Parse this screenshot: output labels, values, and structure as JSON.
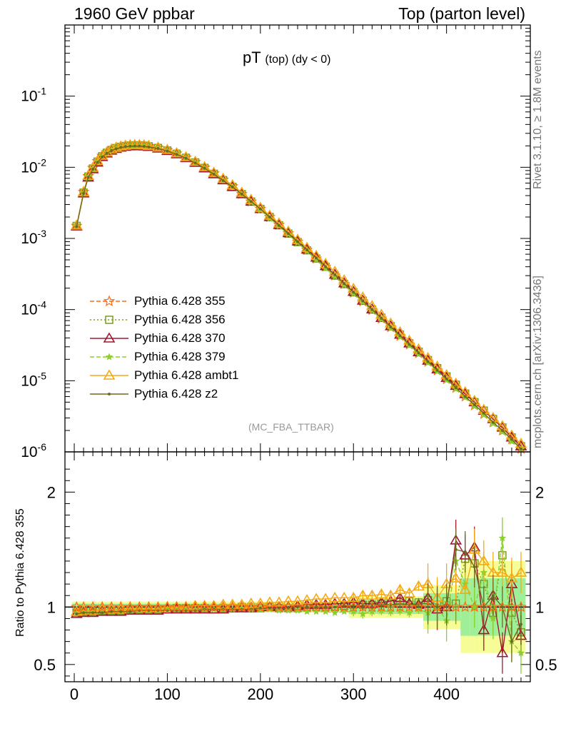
{
  "header": {
    "left": "1960 GeV ppbar",
    "right": "Top (parton level)",
    "title_main": "pT",
    "title_sub": "(top) (dy < 0)",
    "watermark": "(MC_FBA_TTBAR)",
    "side_rivet": "Rivet 3.1.10, ≥ 1.8M events",
    "side_mcplots": "mcplots.cern.ch [arXiv:1306.3436]"
  },
  "chart_data": [
    {
      "type": "line",
      "panel": "main",
      "yscale": "log",
      "xlim": [
        -10,
        490
      ],
      "ylim": [
        1e-06,
        1
      ],
      "ytick_labels": [
        "10^-1",
        "10^-2",
        "10^-3",
        "10^-4",
        "10^-5",
        "10^-6"
      ],
      "x": [
        2.5,
        10,
        15,
        20,
        25,
        30,
        35,
        40,
        45,
        50,
        55,
        60,
        65,
        70,
        75,
        80,
        90,
        100,
        110,
        120,
        130,
        140,
        150,
        160,
        170,
        180,
        190,
        200,
        210,
        220,
        230,
        240,
        250,
        260,
        270,
        280,
        290,
        300,
        310,
        320,
        330,
        340,
        350,
        360,
        370,
        380,
        390,
        400,
        410,
        420,
        430,
        440,
        450,
        460,
        470,
        480
      ],
      "series": [
        {
          "name": "Pythia 6.428 355",
          "color": "#ff6a13",
          "marker": "star",
          "dash": "6,3",
          "values": [
            0.0015,
            0.0045,
            0.0075,
            0.0098,
            0.0122,
            0.0145,
            0.0162,
            0.0178,
            0.0188,
            0.0196,
            0.0201,
            0.0204,
            0.0205,
            0.0205,
            0.0203,
            0.0199,
            0.0189,
            0.0174,
            0.0156,
            0.0137,
            0.0118,
            0.0099,
            0.0082,
            0.0067,
            0.0054,
            0.0042,
            0.0033,
            0.0026,
            0.002,
            0.00155,
            0.00118,
            0.0009,
            0.00069,
            0.00052,
            0.0004,
            0.0003,
            0.000228,
            0.000172,
            0.00013,
            9.85e-05,
            7.45e-05,
            5.63e-05,
            4.25e-05,
            3.22e-05,
            2.43e-05,
            1.84e-05,
            1.39e-05,
            1.05e-05,
            7.9e-06,
            6e-06,
            4.5e-06,
            3.4e-06,
            2.6e-06,
            2e-06,
            1.5e-06,
            1.1e-06
          ]
        },
        {
          "name": "Pythia 6.428 356",
          "color": "#7c9e1f",
          "marker": "square",
          "dash": "2,3",
          "values": [
            0.0015,
            0.0044,
            0.0074,
            0.0096,
            0.012,
            0.0143,
            0.016,
            0.0175,
            0.0186,
            0.0194,
            0.0199,
            0.0202,
            0.0203,
            0.0203,
            0.0201,
            0.0197,
            0.0187,
            0.0172,
            0.0155,
            0.0136,
            0.0117,
            0.0098,
            0.0081,
            0.0066,
            0.0053,
            0.0042,
            0.0033,
            0.0026,
            0.002,
            0.00153,
            0.00117,
            0.00089,
            0.00068,
            0.00052,
            0.0004,
            0.0003,
            0.000228,
            0.000175,
            0.000133,
            0.0001,
            7.7e-05,
            5.85e-05,
            4.45e-05,
            3.36e-05,
            2.56e-05,
            1.95e-05,
            1.5e-05,
            1.15e-05,
            8.8e-06,
            6.6e-06,
            5e-06,
            3.8e-06,
            2.9e-06,
            2.2e-06,
            1.6e-06,
            1.2e-06
          ]
        },
        {
          "name": "Pythia 6.428 370",
          "color": "#a01830",
          "marker": "triangle",
          "dash": "",
          "values": [
            0.00148,
            0.0043,
            0.0072,
            0.0094,
            0.0117,
            0.014,
            0.0157,
            0.0172,
            0.0182,
            0.019,
            0.0195,
            0.0198,
            0.0199,
            0.0199,
            0.0197,
            0.0194,
            0.0184,
            0.017,
            0.0153,
            0.0135,
            0.0116,
            0.0097,
            0.008,
            0.0066,
            0.0053,
            0.0042,
            0.0033,
            0.0026,
            0.002,
            0.00155,
            0.00119,
            0.00091,
            0.0007,
            0.00054,
            0.00041,
            0.00031,
            0.000235,
            0.000178,
            0.000134,
            0.000101,
            7.65e-05,
            5.85e-05,
            4.45e-05,
            3.35e-05,
            2.53e-05,
            1.92e-05,
            1.45e-05,
            1.1e-05,
            8.5e-06,
            6.5e-06,
            5e-06,
            3.8e-06,
            2.9e-06,
            2.2e-06,
            1.6e-06,
            1.2e-06
          ]
        },
        {
          "name": "Pythia 6.428 379",
          "color": "#8ccf2e",
          "marker": "star-small",
          "dash": "6,3",
          "values": [
            0.0015,
            0.0044,
            0.0074,
            0.0097,
            0.0121,
            0.0144,
            0.0161,
            0.0176,
            0.0187,
            0.0195,
            0.02,
            0.0203,
            0.0204,
            0.0204,
            0.0202,
            0.0198,
            0.0188,
            0.0173,
            0.0155,
            0.0136,
            0.0117,
            0.0098,
            0.0081,
            0.0066,
            0.0053,
            0.0042,
            0.0032,
            0.0025,
            0.0019,
            0.00149,
            0.00114,
            0.00087,
            0.00066,
            0.0005,
            0.00038,
            0.00029,
            0.000221,
            0.000167,
            0.000127,
            9.6e-05,
            7.25e-05,
            5.48e-05,
            4.14e-05,
            3.13e-05,
            2.37e-05,
            1.79e-05,
            1.35e-05,
            1.02e-05,
            7.7e-06,
            5.8e-06,
            4.4e-06,
            3.3e-06,
            2.5e-06,
            1.9e-06,
            1.4e-06,
            1.1e-06
          ]
        },
        {
          "name": "Pythia 6.428 ambt1",
          "color": "#f5a914",
          "marker": "triangle",
          "dash": "",
          "values": [
            0.00152,
            0.0045,
            0.0076,
            0.0099,
            0.0123,
            0.0146,
            0.0163,
            0.0179,
            0.0189,
            0.0197,
            0.0202,
            0.0205,
            0.0206,
            0.0206,
            0.0204,
            0.02,
            0.019,
            0.0176,
            0.0158,
            0.0139,
            0.012,
            0.0101,
            0.0084,
            0.0069,
            0.0056,
            0.0044,
            0.0035,
            0.0027,
            0.0021,
            0.00163,
            0.00125,
            0.00096,
            0.00074,
            0.00057,
            0.00044,
            0.00034,
            0.000258,
            0.000196,
            0.000148,
            0.000112,
            8.45e-05,
            6.38e-05,
            4.82e-05,
            3.65e-05,
            2.76e-05,
            2.09e-05,
            1.58e-05,
            1.2e-05,
            9.1e-06,
            6.9e-06,
            5.2e-06,
            3.9e-06,
            3e-06,
            2.3e-06,
            1.7e-06,
            1.3e-06
          ]
        },
        {
          "name": "Pythia 6.428 z2",
          "color": "#6b6b1f",
          "marker": "dot",
          "dash": "",
          "values": [
            0.00147,
            0.0043,
            0.0072,
            0.0094,
            0.0117,
            0.014,
            0.0157,
            0.0172,
            0.0182,
            0.019,
            0.0195,
            0.0198,
            0.0199,
            0.0199,
            0.0197,
            0.0193,
            0.0184,
            0.0169,
            0.0152,
            0.0134,
            0.0115,
            0.0097,
            0.008,
            0.0065,
            0.0053,
            0.0042,
            0.0033,
            0.0026,
            0.002,
            0.00152,
            0.00117,
            0.0009,
            0.00069,
            0.00053,
            0.0004,
            0.00031,
            0.000232,
            0.000176,
            0.000133,
            0.0001,
            7.55e-05,
            5.7e-05,
            4.3e-05,
            3.25e-05,
            2.46e-05,
            1.86e-05,
            1.4e-05,
            1.06e-05,
            8e-06,
            6e-06,
            4.6e-06,
            3.5e-06,
            2.6e-06,
            2e-06,
            1.5e-06,
            1.1e-06
          ]
        }
      ]
    },
    {
      "type": "line",
      "panel": "ratio",
      "ylabel": "Ratio to Pythia 6.428 355",
      "xlim": [
        -10,
        490
      ],
      "ylim": [
        0.35,
        2.35
      ],
      "yticks": [
        0.5,
        1,
        2
      ],
      "ytick_labels": [
        "0.5",
        "1",
        "2"
      ],
      "xticks": [
        0,
        100,
        200,
        300,
        400
      ],
      "xtick_labels": [
        "0",
        "100",
        "200",
        "300",
        "400"
      ],
      "x": [
        2.5,
        10,
        20,
        30,
        40,
        50,
        60,
        70,
        80,
        90,
        100,
        110,
        120,
        130,
        140,
        150,
        160,
        170,
        180,
        190,
        200,
        210,
        220,
        230,
        240,
        250,
        260,
        270,
        280,
        290,
        300,
        310,
        320,
        330,
        340,
        350,
        360,
        370,
        380,
        390,
        400,
        410,
        420,
        430,
        440,
        450,
        460,
        470,
        480
      ],
      "series": [
        {
          "name": "Pythia 6.428 356",
          "color": "#7c9e1f",
          "marker": "square",
          "dash": "2,3",
          "values": [
            0.95,
            0.96,
            0.96,
            0.97,
            0.97,
            0.97,
            0.98,
            0.98,
            0.98,
            0.98,
            0.98,
            0.99,
            0.99,
            0.99,
            0.99,
            0.98,
            0.99,
            0.99,
            1.0,
            1.0,
            0.99,
            1.0,
            0.99,
            0.99,
            0.99,
            1.0,
            1.0,
            1.0,
            1.0,
            1.01,
            1.02,
            1.02,
            1.02,
            1.03,
            1.03,
            1.05,
            1.05,
            1.04,
            1.06,
            1.02,
            1.05,
            1.03,
            1.42,
            1.38,
            1.2,
            0.95,
            1.45,
            0.95,
            0.78
          ]
        },
        {
          "name": "Pythia 6.428 370",
          "color": "#a01830",
          "marker": "triangle",
          "dash": "",
          "values": [
            0.94,
            0.95,
            0.95,
            0.96,
            0.96,
            0.96,
            0.97,
            0.97,
            0.97,
            0.97,
            0.98,
            0.98,
            0.98,
            0.98,
            0.98,
            0.98,
            0.98,
            0.99,
            0.99,
            0.99,
            1.0,
            1.0,
            1.0,
            1.0,
            1.01,
            1.02,
            1.02,
            1.02,
            1.03,
            1.03,
            1.04,
            1.03,
            1.03,
            1.04,
            1.05,
            1.08,
            1.03,
            1.02,
            1.08,
            0.98,
            1.0,
            1.58,
            1.45,
            1.52,
            0.8,
            1.1,
            0.6,
            1.2,
            0.75
          ]
        },
        {
          "name": "Pythia 6.428 379",
          "color": "#8ccf2e",
          "marker": "star-small",
          "dash": "6,3",
          "values": [
            0.95,
            0.96,
            0.96,
            0.97,
            0.97,
            0.97,
            0.98,
            0.98,
            0.98,
            0.98,
            0.98,
            0.98,
            0.98,
            0.98,
            0.98,
            0.98,
            0.98,
            0.98,
            0.99,
            0.98,
            0.98,
            0.98,
            0.97,
            0.97,
            0.97,
            0.96,
            0.96,
            0.96,
            0.95,
            0.96,
            0.96,
            0.94,
            0.96,
            0.97,
            0.96,
            0.97,
            0.95,
            0.98,
            0.95,
            1.0,
            0.88,
            1.4,
            1.2,
            1.0,
            1.3,
            0.9,
            1.6,
            0.7,
            0.6
          ]
        },
        {
          "name": "Pythia 6.428 ambt1",
          "color": "#f5a914",
          "marker": "triangle",
          "dash": "",
          "values": [
            0.96,
            0.97,
            0.97,
            0.98,
            0.98,
            0.98,
            0.99,
            0.99,
            0.99,
            0.99,
            1.0,
            1.0,
            1.0,
            1.01,
            1.01,
            1.01,
            1.02,
            1.02,
            1.02,
            1.03,
            1.03,
            1.04,
            1.04,
            1.05,
            1.05,
            1.06,
            1.07,
            1.07,
            1.08,
            1.08,
            1.08,
            1.1,
            1.1,
            1.11,
            1.1,
            1.15,
            1.12,
            1.18,
            1.2,
            1.08,
            1.2,
            1.25,
            1.15,
            1.5,
            1.4,
            1.3,
            1.3,
            1.25,
            1.3
          ]
        },
        {
          "name": "Pythia 6.428 z2",
          "color": "#6b6b1f",
          "marker": "dot",
          "dash": "",
          "values": [
            0.94,
            0.95,
            0.95,
            0.95,
            0.96,
            0.96,
            0.96,
            0.97,
            0.97,
            0.97,
            0.97,
            0.97,
            0.97,
            0.97,
            0.98,
            0.98,
            0.98,
            0.98,
            0.98,
            0.98,
            0.99,
            0.99,
            0.99,
            0.99,
            1.0,
            1.0,
            1.0,
            1.0,
            1.0,
            1.01,
            1.01,
            1.01,
            1.02,
            1.02,
            1.02,
            1.03,
            1.02,
            1.03,
            1.03,
            1.0,
            1.02,
            1.5,
            1.48,
            1.35,
            1.0,
            1.1,
            1.0,
            0.7,
            0.85
          ]
        }
      ]
    }
  ]
}
